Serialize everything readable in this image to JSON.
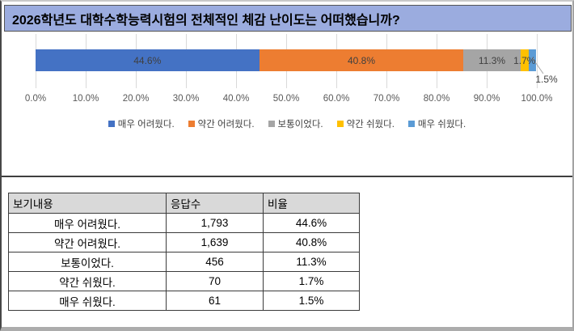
{
  "title_bar": {
    "text": "2026학년도 대학수학능력시험의 전체적인 체감 난이도는 어떠했습니까?"
  },
  "colors": {
    "title_bar_bg": "#9BACDF",
    "table_header_bg": "#D9D9D9",
    "gridline": "#D9D9D9",
    "leader_line": "#A6A6A6"
  },
  "chart_data": {
    "type": "bar",
    "subtype": "horizontal-stacked",
    "title": "",
    "xlabel": "",
    "ylabel": "",
    "xlim": [
      0,
      100
    ],
    "grid": true,
    "legend_position": "bottom",
    "x_ticks": [
      "0.0%",
      "10.0%",
      "20.0%",
      "30.0%",
      "40.0%",
      "50.0%",
      "60.0%",
      "70.0%",
      "80.0%",
      "90.0%",
      "100.0%"
    ],
    "series": [
      {
        "name": "매우 어려웠다.",
        "value": 44.6,
        "label": "44.6%",
        "color": "#4472C4",
        "label_placement": "inside"
      },
      {
        "name": "약간 어려웠다.",
        "value": 40.8,
        "label": "40.8%",
        "color": "#ED7D31",
        "label_placement": "inside"
      },
      {
        "name": "보통이었다.",
        "value": 11.3,
        "label": "11.3%",
        "color": "#A5A5A5",
        "label_placement": "inside"
      },
      {
        "name": "약간 쉬웠다.",
        "value": 1.7,
        "label": "1.7%",
        "color": "#FFC000",
        "label_placement": "inside"
      },
      {
        "name": "매우 쉬웠다.",
        "value": 1.5,
        "label": "1.5%",
        "color": "#5B9BD5",
        "label_placement": "callout"
      }
    ]
  },
  "table": {
    "headers": [
      "보기내용",
      "응답수",
      "비율"
    ],
    "rows": [
      [
        "매우 어려웠다.",
        "1,793",
        "44.6%"
      ],
      [
        "약간 어려웠다.",
        "1,639",
        "40.8%"
      ],
      [
        "보통이었다.",
        "456",
        "11.3%"
      ],
      [
        "약간 쉬웠다.",
        "70",
        "1.7%"
      ],
      [
        "매우 쉬웠다.",
        "61",
        "1.5%"
      ]
    ]
  }
}
